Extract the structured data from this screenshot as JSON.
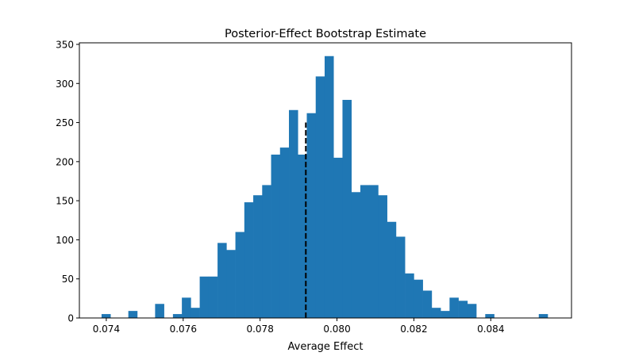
{
  "chart_data": {
    "type": "histogram",
    "title": "Posterior-Effect Bootstrap Estimate",
    "xlabel": "Average Effect",
    "ylabel": "",
    "xlim": [
      0.0733,
      0.0861
    ],
    "ylim": [
      0,
      352
    ],
    "xticks": [
      0.074,
      0.076,
      0.078,
      0.08,
      0.082,
      0.084
    ],
    "xtick_labels": [
      "0.074",
      "0.076",
      "0.078",
      "0.080",
      "0.082",
      "0.084"
    ],
    "yticks": [
      0,
      50,
      100,
      150,
      200,
      250,
      300,
      350
    ],
    "ytick_labels": [
      "0",
      "50",
      "100",
      "150",
      "200",
      "250",
      "300",
      "350"
    ],
    "bin_range": [
      0.073877,
      0.085481
    ],
    "counts": [
      5,
      0,
      0,
      9,
      0,
      0,
      18,
      0,
      5,
      26,
      13,
      53,
      53,
      96,
      87,
      110,
      148,
      157,
      170,
      209,
      218,
      266,
      209,
      262,
      309,
      335,
      205,
      279,
      161,
      170,
      170,
      157,
      123,
      104,
      57,
      49,
      35,
      13,
      9,
      26,
      22,
      18,
      0,
      5,
      0,
      0,
      0,
      0,
      0,
      5
    ],
    "bar_color": "#1f77b4",
    "reference_line": {
      "x": 0.07919,
      "y_range": [
        0,
        250
      ],
      "style": "dashed",
      "color": "#000000"
    },
    "grid": false
  }
}
